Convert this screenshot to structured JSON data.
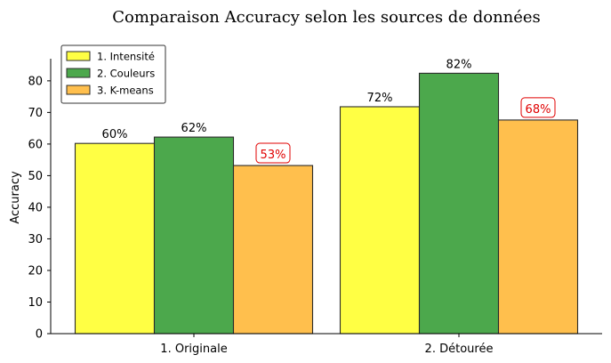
{
  "chart_data": {
    "type": "bar",
    "title": "Comparaison Accuracy selon les sources de données",
    "xlabel": "",
    "ylabel": "Accuracy",
    "categories": [
      "1. Originale",
      "2. Détourée"
    ],
    "ylim": [
      0,
      87
    ],
    "yticks": [
      0,
      10,
      20,
      30,
      40,
      50,
      60,
      70,
      80
    ],
    "grid": false,
    "legend_position": "top-left",
    "series": [
      {
        "name": "1. Intensité",
        "color": "#ffff44",
        "values": [
          60.2,
          71.8
        ],
        "labels": [
          "60%",
          "72%"
        ],
        "boxed": false
      },
      {
        "name": "2. Couleurs",
        "color": "#4ca84c",
        "values": [
          62.2,
          82.4
        ],
        "labels": [
          "62%",
          "82%"
        ],
        "boxed": false
      },
      {
        "name": "3. K-means",
        "color": "#ffbf4d",
        "values": [
          53.2,
          67.6
        ],
        "labels": [
          "53%",
          "68%"
        ],
        "boxed": true
      }
    ],
    "label_color": "#000000",
    "boxed_label_color": "#e00000"
  }
}
